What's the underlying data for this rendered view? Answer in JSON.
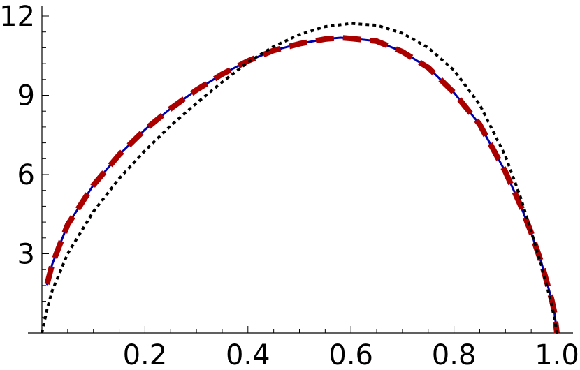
{
  "chart_data": {
    "type": "line",
    "title": "",
    "xlabel": "",
    "ylabel": "",
    "xlim": [
      0,
      1
    ],
    "ylim": [
      0,
      12
    ],
    "grid": false,
    "x_ticks": [
      0.2,
      0.4,
      0.6,
      0.8,
      1.0
    ],
    "x_tick_labels": [
      "0.2",
      "0.4",
      "0.6",
      "0.8",
      "1.0"
    ],
    "x_minor_step": 0.05,
    "y_ticks": [
      3,
      6,
      9,
      12
    ],
    "y_tick_labels": [
      "3",
      "6",
      "9",
      "12"
    ],
    "y_minor_step": 0.6,
    "series": [
      {
        "style": "solid",
        "color": "#0000aa",
        "x": [
          0.01,
          0.02,
          0.05,
          0.1,
          0.15,
          0.2,
          0.25,
          0.3,
          0.35,
          0.4,
          0.45,
          0.5,
          0.55,
          0.58,
          0.6,
          0.65,
          0.7,
          0.75,
          0.8,
          0.85,
          0.9,
          0.93,
          0.95,
          0.97,
          0.98,
          0.99,
          0.995,
          1.0
        ],
        "y": [
          1.85,
          2.6,
          4.1,
          5.6,
          6.75,
          7.7,
          8.5,
          9.2,
          9.8,
          10.3,
          10.7,
          10.95,
          11.13,
          11.18,
          11.15,
          11.05,
          10.65,
          10.05,
          9.1,
          7.9,
          6.1,
          4.8,
          3.8,
          2.65,
          1.95,
          1.25,
          0.8,
          0.0
        ]
      },
      {
        "style": "dashed",
        "color": "#aa0000",
        "x": [
          0.01,
          0.02,
          0.05,
          0.1,
          0.15,
          0.2,
          0.25,
          0.3,
          0.35,
          0.4,
          0.45,
          0.5,
          0.55,
          0.58,
          0.6,
          0.65,
          0.7,
          0.75,
          0.8,
          0.85,
          0.9,
          0.93,
          0.95,
          0.97,
          0.98,
          0.99,
          0.995,
          1.0
        ],
        "y": [
          1.85,
          2.6,
          4.1,
          5.6,
          6.75,
          7.7,
          8.5,
          9.2,
          9.8,
          10.3,
          10.7,
          10.95,
          11.13,
          11.18,
          11.15,
          11.05,
          10.65,
          10.05,
          9.1,
          7.9,
          6.1,
          4.8,
          3.8,
          2.65,
          1.95,
          1.25,
          0.8,
          0.0
        ]
      },
      {
        "style": "dotted",
        "color": "#000000",
        "x": [
          0.0,
          0.01,
          0.02,
          0.05,
          0.1,
          0.15,
          0.2,
          0.25,
          0.3,
          0.35,
          0.4,
          0.45,
          0.5,
          0.55,
          0.6,
          0.65,
          0.7,
          0.75,
          0.8,
          0.85,
          0.9,
          0.93,
          0.95,
          0.97,
          0.98,
          0.99,
          0.995,
          1.0
        ],
        "y": [
          0.0,
          0.9,
          1.6,
          3.0,
          4.6,
          5.85,
          6.9,
          7.85,
          8.7,
          9.5,
          10.25,
          10.85,
          11.3,
          11.6,
          11.72,
          11.65,
          11.35,
          10.8,
          9.95,
          8.65,
          6.7,
          5.1,
          3.85,
          2.55,
          1.8,
          1.05,
          0.6,
          0.0
        ]
      }
    ]
  }
}
